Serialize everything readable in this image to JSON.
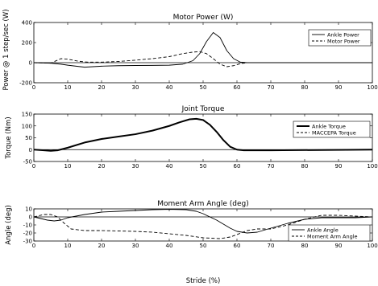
{
  "figure": {
    "shared_ylabel": "Power @ 1 step/sec (W)",
    "xlabel": "Stride (%)"
  },
  "chart_data": [
    {
      "type": "line",
      "title": "Motor Power (W)",
      "ylabel": "",
      "xlabel": "",
      "xlim": [
        0,
        100
      ],
      "ylim": [
        -200,
        400
      ],
      "xticks": [
        0,
        10,
        20,
        30,
        40,
        50,
        60,
        70,
        80,
        90,
        100
      ],
      "yticks": [
        -200,
        0,
        200,
        400
      ],
      "grid": false,
      "zero_line": true,
      "legend": "top-right",
      "series": [
        {
          "name": "Ankle Power",
          "style": "solid",
          "x": [
            0,
            5,
            8,
            10,
            15,
            20,
            25,
            30,
            35,
            40,
            44,
            47,
            49,
            51,
            53,
            55,
            57,
            59,
            61,
            63,
            100
          ],
          "y": [
            0,
            -5,
            -15,
            -25,
            -45,
            -35,
            -30,
            -28,
            -27,
            -25,
            -15,
            20,
            90,
            210,
            300,
            250,
            120,
            40,
            5,
            0,
            0
          ]
        },
        {
          "name": "Motor Power",
          "style": "dashed",
          "x": [
            0,
            5,
            8,
            10,
            13,
            16,
            20,
            25,
            30,
            35,
            40,
            44,
            47,
            49,
            51,
            53,
            55,
            57,
            59,
            61,
            63,
            100
          ],
          "y": [
            0,
            -5,
            40,
            35,
            15,
            5,
            5,
            12,
            25,
            40,
            60,
            90,
            105,
            110,
            90,
            40,
            -15,
            -40,
            -30,
            -10,
            0,
            0
          ]
        }
      ]
    },
    {
      "type": "line",
      "title": "Joint Torque",
      "ylabel": "Torque (Nm)",
      "xlabel": "",
      "xlim": [
        0,
        100
      ],
      "ylim": [
        -50,
        150
      ],
      "xticks": [
        0,
        10,
        20,
        30,
        40,
        50,
        60,
        70,
        80,
        90,
        100
      ],
      "yticks": [
        -50,
        0,
        50,
        100,
        150
      ],
      "grid": false,
      "zero_line": true,
      "legend": "top-right",
      "series": [
        {
          "name": "Ankle Torque",
          "style": "solid-thick",
          "x": [
            0,
            3,
            5,
            7,
            10,
            15,
            20,
            25,
            30,
            35,
            40,
            43,
            46,
            48,
            50,
            52,
            54,
            56,
            58,
            60,
            62,
            70,
            100
          ],
          "y": [
            0,
            -3,
            -5,
            -3,
            8,
            30,
            45,
            55,
            65,
            80,
            100,
            115,
            128,
            130,
            125,
            105,
            75,
            40,
            12,
            0,
            -3,
            -3,
            0
          ]
        },
        {
          "name": "MACCEPA Torque",
          "style": "dashed",
          "x": [
            0,
            3,
            5,
            7,
            10,
            15,
            20,
            25,
            30,
            35,
            40,
            43,
            46,
            48,
            50,
            52,
            54,
            56,
            58,
            60,
            62,
            70,
            100
          ],
          "y": [
            0,
            -3,
            -5,
            -3,
            8,
            30,
            45,
            55,
            65,
            80,
            100,
            115,
            128,
            130,
            125,
            105,
            75,
            40,
            12,
            0,
            -3,
            -3,
            0
          ]
        }
      ]
    },
    {
      "type": "line",
      "title": "Moment Arm Angle (deg)",
      "ylabel": "Angle (deg)",
      "xlabel": "Stride (%)",
      "xlim": [
        0,
        100
      ],
      "ylim": [
        -30,
        10
      ],
      "xticks": [
        0,
        10,
        20,
        30,
        40,
        50,
        60,
        70,
        80,
        90,
        100
      ],
      "yticks": [
        -30,
        -20,
        -10,
        0,
        10
      ],
      "grid": false,
      "zero_line": true,
      "legend": "bottom-right",
      "series": [
        {
          "name": "Ankle Angle",
          "style": "solid",
          "x": [
            0,
            2,
            4,
            6,
            8,
            10,
            15,
            20,
            25,
            30,
            35,
            40,
            45,
            48,
            50,
            52,
            54,
            56,
            58,
            60,
            63,
            66,
            70,
            75,
            80,
            85,
            90,
            95,
            100
          ],
          "y": [
            0,
            -2,
            -4,
            -5,
            -4,
            -1,
            3,
            6,
            7,
            8,
            9,
            9.5,
            9,
            7,
            4,
            0,
            -4,
            -9,
            -14,
            -18,
            -20,
            -19,
            -14,
            -8,
            -3,
            -1,
            -1,
            -1,
            0
          ]
        },
        {
          "name": "Moment Arm Angle",
          "style": "dashed",
          "x": [
            0,
            3,
            5,
            7,
            9,
            11,
            15,
            20,
            25,
            30,
            35,
            40,
            45,
            50,
            55,
            58,
            60,
            63,
            66,
            70,
            75,
            80,
            85,
            90,
            95,
            100
          ],
          "y": [
            0,
            3,
            3,
            0,
            -8,
            -15,
            -17,
            -17,
            -17.5,
            -18,
            -19,
            -21,
            -23,
            -26,
            -27,
            -25,
            -22,
            -17,
            -15,
            -15,
            -10,
            -3,
            2,
            2,
            1,
            0
          ]
        }
      ]
    }
  ]
}
